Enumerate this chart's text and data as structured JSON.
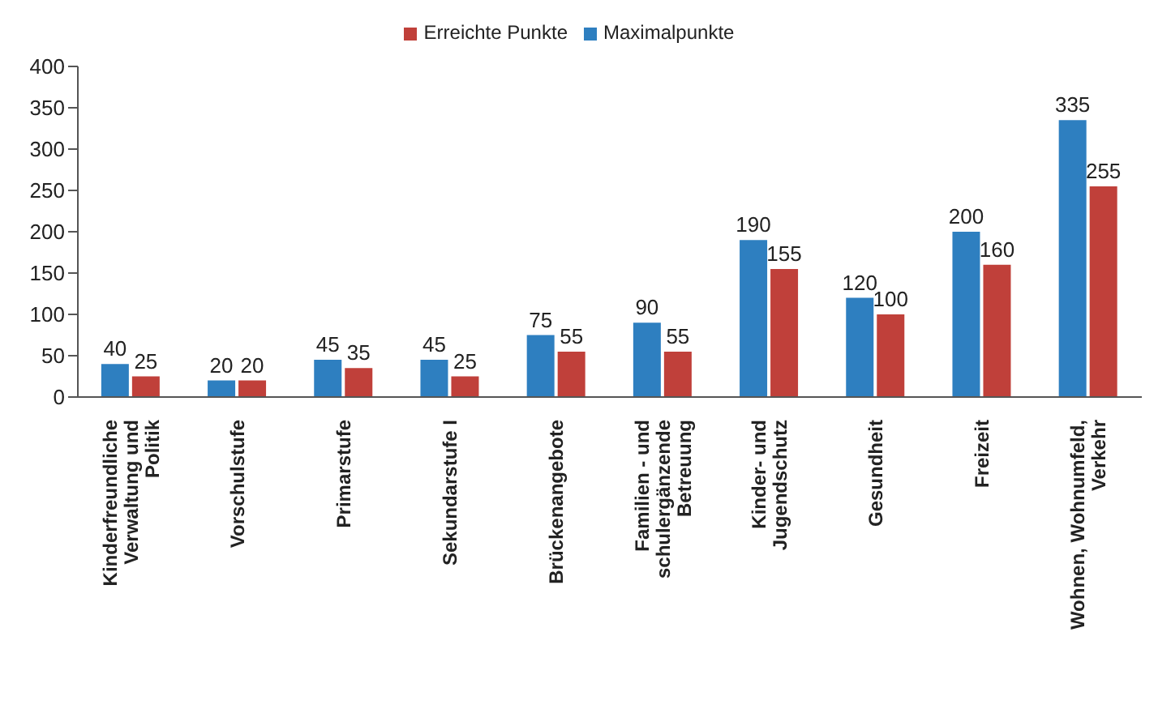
{
  "chart_data": {
    "type": "bar",
    "categories": [
      "Kinderfreundliche Verwaltung und Politik",
      "Vorschulstufe",
      "Primarstufe",
      "Sekundarstufe I",
      "Brückenangebote",
      "Familien - und schulergänzende Betreuung",
      "Kinder- und Jugendschutz",
      "Gesundheit",
      "Freizeit",
      "Wohnen, Wohnumfeld, Verkehr"
    ],
    "series": [
      {
        "name": "Maximalpunkte",
        "color": "#2e7fc0",
        "values": [
          40,
          20,
          45,
          45,
          75,
          90,
          190,
          120,
          200,
          335
        ]
      },
      {
        "name": "Erreichte Punkte",
        "color": "#c0403a",
        "values": [
          25,
          20,
          35,
          25,
          55,
          55,
          155,
          100,
          160,
          255
        ]
      }
    ],
    "ylim": [
      0,
      400
    ],
    "yticks": [
      0,
      50,
      100,
      150,
      200,
      250,
      300,
      350,
      400
    ],
    "grid": false,
    "legend": "top",
    "data_labels": true
  }
}
